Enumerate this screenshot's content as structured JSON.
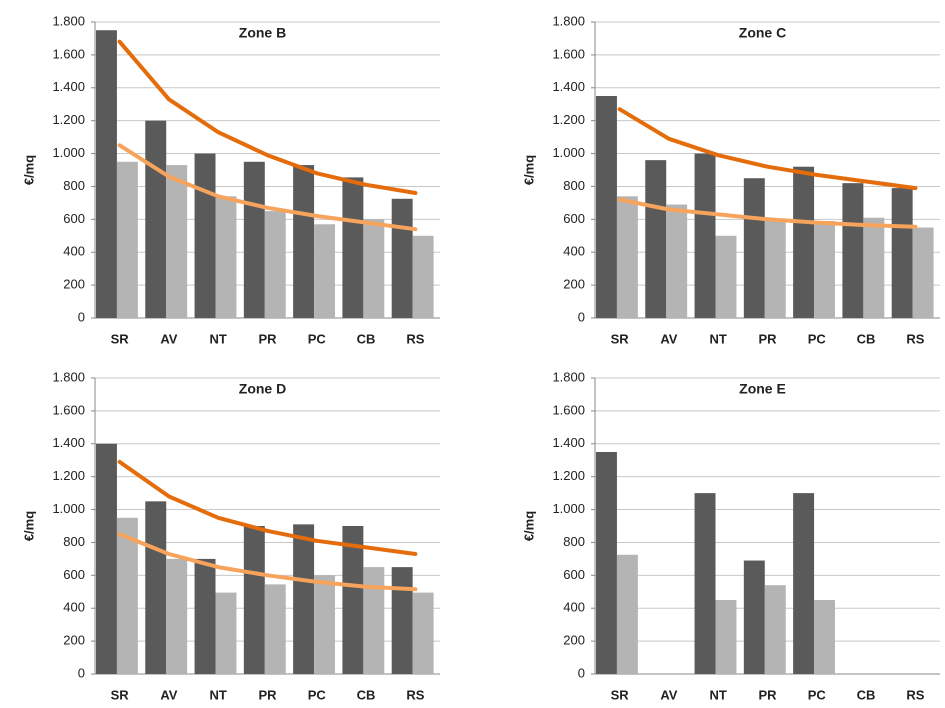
{
  "chart_data": [
    {
      "type": "bar",
      "title": "Zone B",
      "y_label": "€/mq",
      "categories": [
        "SR",
        "AV",
        "NT",
        "PR",
        "PC",
        "CB",
        "RS"
      ],
      "ylim": [
        0,
        1800
      ],
      "yticks": [
        0,
        200,
        400,
        600,
        800,
        {
          "value": 1000,
          "label": "1.000"
        },
        {
          "value": 1200,
          "label": "1.200"
        },
        {
          "value": 1400,
          "label": "1.400"
        },
        {
          "value": 1600,
          "label": "1.600"
        },
        {
          "value": 1800,
          "label": "1.800"
        }
      ],
      "grid": true,
      "series": [
        {
          "color": "#5a5a5a",
          "values": [
            1750,
            1200,
            1000,
            950,
            930,
            855,
            725
          ]
        },
        {
          "color": "#b4b4b4",
          "values": [
            950,
            930,
            740,
            650,
            570,
            600,
            500
          ]
        },
        {
          "type": "line",
          "color": "#e46c0a",
          "values": [
            1680,
            1330,
            1130,
            990,
            880,
            810,
            760
          ]
        },
        {
          "type": "line",
          "color": "#f7a35c",
          "values": [
            1050,
            860,
            740,
            670,
            620,
            580,
            540
          ]
        }
      ]
    },
    {
      "type": "bar",
      "title": "Zone C",
      "y_label": "€/mq",
      "categories": [
        "SR",
        "AV",
        "NT",
        "PR",
        "PC",
        "CB",
        "RS"
      ],
      "ylim": [
        0,
        1800
      ],
      "yticks": [
        0,
        200,
        400,
        600,
        800,
        {
          "value": 1000,
          "label": "1.000"
        },
        {
          "value": 1200,
          "label": "1.200"
        },
        {
          "value": 1400,
          "label": "1.400"
        },
        {
          "value": 1600,
          "label": "1.600"
        },
        {
          "value": 1800,
          "label": "1.800"
        }
      ],
      "grid": true,
      "series": [
        {
          "color": "#5a5a5a",
          "values": [
            1350,
            960,
            1000,
            850,
            920,
            820,
            790
          ]
        },
        {
          "color": "#b4b4b4",
          "values": [
            740,
            690,
            500,
            590,
            590,
            610,
            550
          ]
        },
        {
          "type": "line",
          "color": "#e46c0a",
          "values": [
            1270,
            1090,
            990,
            920,
            870,
            830,
            790
          ]
        },
        {
          "type": "line",
          "color": "#f7a35c",
          "values": [
            720,
            660,
            630,
            600,
            580,
            565,
            555
          ]
        }
      ]
    },
    {
      "type": "bar",
      "title": "Zone D",
      "y_label": "€/mq",
      "categories": [
        "SR",
        "AV",
        "NT",
        "PR",
        "PC",
        "CB",
        "RS"
      ],
      "ylim": [
        0,
        1800
      ],
      "yticks": [
        0,
        200,
        400,
        600,
        800,
        {
          "value": 1000,
          "label": "1.000"
        },
        {
          "value": 1200,
          "label": "1.200"
        },
        {
          "value": 1400,
          "label": "1.400"
        },
        {
          "value": 1600,
          "label": "1.600"
        },
        {
          "value": 1800,
          "label": "1.800"
        }
      ],
      "grid": true,
      "series": [
        {
          "color": "#5a5a5a",
          "values": [
            1400,
            1050,
            700,
            900,
            910,
            900,
            650
          ]
        },
        {
          "color": "#b4b4b4",
          "values": [
            950,
            700,
            495,
            545,
            600,
            650,
            495
          ]
        },
        {
          "type": "line",
          "color": "#e46c0a",
          "values": [
            1290,
            1080,
            950,
            870,
            810,
            770,
            730
          ]
        },
        {
          "type": "line",
          "color": "#f7a35c",
          "values": [
            850,
            730,
            650,
            600,
            560,
            530,
            515
          ]
        }
      ]
    },
    {
      "type": "bar",
      "title": "Zone E",
      "y_label": "€/mq",
      "categories": [
        "SR",
        "AV",
        "NT",
        "PR",
        "PC",
        "CB",
        "RS"
      ],
      "ylim": [
        0,
        1800
      ],
      "yticks": [
        0,
        200,
        400,
        600,
        800,
        {
          "value": 1000,
          "label": "1.000"
        },
        {
          "value": 1200,
          "label": "1.200"
        },
        {
          "value": 1400,
          "label": "1.400"
        },
        {
          "value": 1600,
          "label": "1.600"
        },
        {
          "value": 1800,
          "label": "1.800"
        }
      ],
      "grid": true,
      "series": [
        {
          "color": "#5a5a5a",
          "values": [
            1350,
            null,
            1100,
            690,
            1100,
            null,
            null
          ]
        },
        {
          "color": "#b4b4b4",
          "values": [
            725,
            null,
            450,
            540,
            450,
            null,
            null
          ]
        }
      ]
    }
  ]
}
